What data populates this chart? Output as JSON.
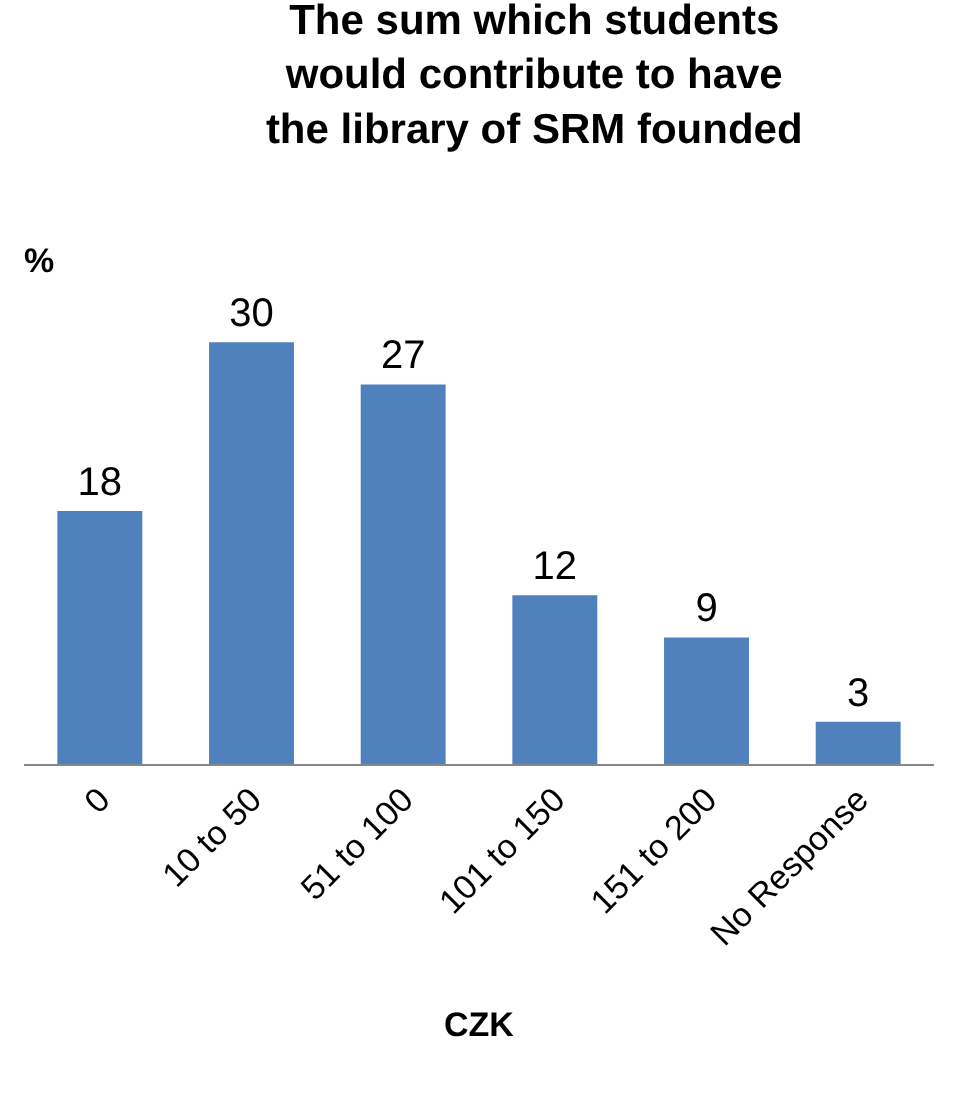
{
  "chart_data": {
    "type": "bar",
    "title": "The sum which students would contribute to have the library of SRM founded",
    "xlabel": "CZK",
    "ylabel": "%",
    "categories": [
      "0",
      "10 to 50",
      "51 to 100",
      "101 to 150",
      "151 to 200",
      "No Response"
    ],
    "values": [
      18,
      30,
      27,
      12,
      9,
      3
    ],
    "color": "#4f81bd",
    "data_labels": true,
    "grid": false,
    "legend": false,
    "tick_labels": "x"
  }
}
